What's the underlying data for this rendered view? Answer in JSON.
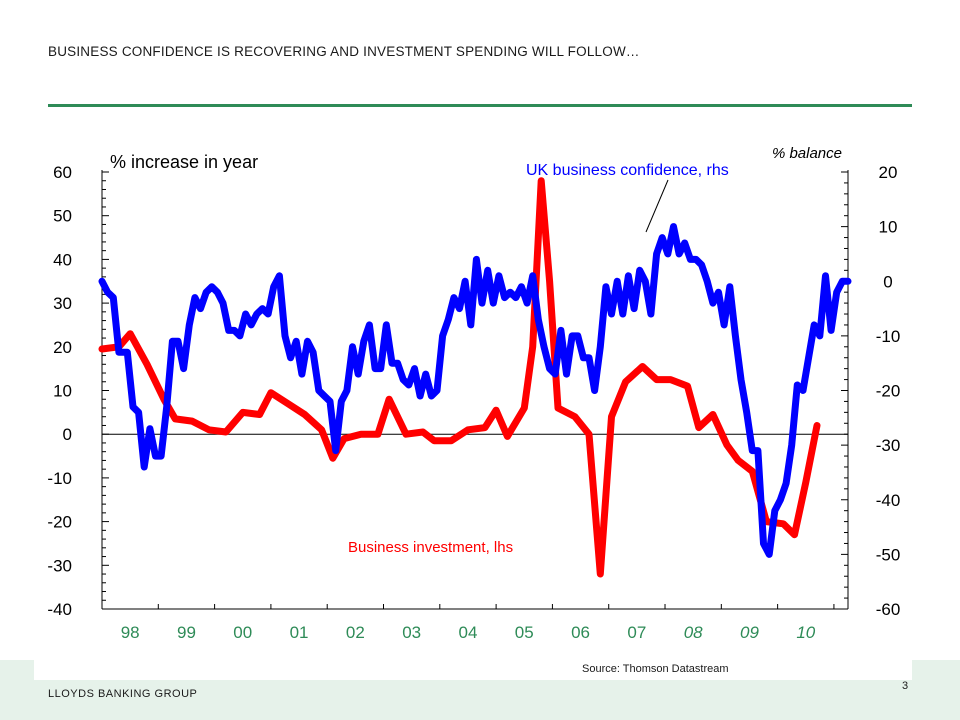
{
  "slide": {
    "title": "BUSINESS CONFIDENCE IS RECOVERING AND INVESTMENT SPENDING WILL FOLLOW…",
    "source": "Source: Thomson Datastream",
    "brand": "LLOYDS BANKING GROUP",
    "page_number": "3",
    "accent_color": "#2e8b57"
  },
  "chart_data": {
    "type": "line",
    "title": "",
    "x_labels": [
      "98",
      "99",
      "00",
      "01",
      "02",
      "03",
      "04",
      "05",
      "06",
      "07",
      "08",
      "09",
      "10"
    ],
    "forecast_labels": [
      "08",
      "09",
      "10"
    ],
    "left_axis": {
      "label": "% increase in year",
      "ylim": [
        -40,
        60
      ],
      "ticks": [
        60,
        50,
        40,
        30,
        20,
        10,
        0,
        -10,
        -20,
        -30,
        -40
      ]
    },
    "right_axis": {
      "label": "% balance",
      "ylim": [
        -60,
        20
      ],
      "ticks": [
        20,
        10,
        0,
        -10,
        -20,
        -30,
        -40,
        -50,
        -60
      ]
    },
    "grid": false,
    "series": [
      {
        "name": "Business investment, lhs",
        "axis": "left",
        "color": "#ff0000",
        "points": [
          [
            1998.0,
            19.5
          ],
          [
            1998.3,
            20
          ],
          [
            1998.5,
            23
          ],
          [
            1998.8,
            16
          ],
          [
            1999.1,
            8
          ],
          [
            1999.3,
            3.5
          ],
          [
            1999.6,
            3
          ],
          [
            1999.9,
            1
          ],
          [
            2000.2,
            0.5
          ],
          [
            2000.5,
            5
          ],
          [
            2000.8,
            4.5
          ],
          [
            2001.0,
            9.5
          ],
          [
            2001.3,
            7
          ],
          [
            2001.6,
            4.5
          ],
          [
            2001.9,
            1
          ],
          [
            2002.1,
            -5.5
          ],
          [
            2002.3,
            -1
          ],
          [
            2002.6,
            0
          ],
          [
            2002.9,
            0
          ],
          [
            2003.1,
            8
          ],
          [
            2003.4,
            0
          ],
          [
            2003.7,
            0.5
          ],
          [
            2003.9,
            -1.5
          ],
          [
            2004.2,
            -1.5
          ],
          [
            2004.5,
            1
          ],
          [
            2004.8,
            1.5
          ],
          [
            2005.0,
            5.5
          ],
          [
            2005.2,
            -0.5
          ],
          [
            2005.5,
            6
          ],
          [
            2005.65,
            20
          ],
          [
            2005.8,
            58
          ],
          [
            2005.95,
            35
          ],
          [
            2006.1,
            6
          ],
          [
            2006.4,
            4
          ],
          [
            2006.65,
            0
          ],
          [
            2006.85,
            -32
          ],
          [
            2007.05,
            4
          ],
          [
            2007.3,
            12
          ],
          [
            2007.6,
            15.5
          ],
          [
            2007.85,
            12.5
          ],
          [
            2008.1,
            12.5
          ],
          [
            2008.4,
            11
          ],
          [
            2008.6,
            1.5
          ],
          [
            2008.85,
            4.5
          ],
          [
            2009.1,
            -2.5
          ],
          [
            2009.3,
            -6
          ],
          [
            2009.55,
            -8.5
          ],
          [
            2009.8,
            -20
          ],
          [
            2010.1,
            -20.5
          ],
          [
            2010.3,
            -23
          ],
          [
            2010.5,
            -11
          ],
          [
            2010.7,
            2
          ]
        ]
      },
      {
        "name": "UK business confidence, rhs",
        "axis": "right",
        "color": "#0000ff",
        "points": [
          [
            1998.0,
            0
          ],
          [
            1998.1,
            -2
          ],
          [
            1998.2,
            -3
          ],
          [
            1998.3,
            -13
          ],
          [
            1998.45,
            -13
          ],
          [
            1998.55,
            -23
          ],
          [
            1998.65,
            -24
          ],
          [
            1998.75,
            -34
          ],
          [
            1998.85,
            -27
          ],
          [
            1998.95,
            -32
          ],
          [
            1999.05,
            -32
          ],
          [
            1999.15,
            -23
          ],
          [
            1999.25,
            -11
          ],
          [
            1999.35,
            -11
          ],
          [
            1999.45,
            -16
          ],
          [
            1999.55,
            -8
          ],
          [
            1999.65,
            -3
          ],
          [
            1999.75,
            -5
          ],
          [
            1999.85,
            -2
          ],
          [
            1999.95,
            -1
          ],
          [
            2000.05,
            -2
          ],
          [
            2000.15,
            -4
          ],
          [
            2000.25,
            -9
          ],
          [
            2000.35,
            -9
          ],
          [
            2000.45,
            -10
          ],
          [
            2000.55,
            -6
          ],
          [
            2000.65,
            -8
          ],
          [
            2000.75,
            -6
          ],
          [
            2000.85,
            -5
          ],
          [
            2000.95,
            -6
          ],
          [
            2001.05,
            -1
          ],
          [
            2001.15,
            1
          ],
          [
            2001.25,
            -10
          ],
          [
            2001.35,
            -14
          ],
          [
            2001.45,
            -11
          ],
          [
            2001.55,
            -17
          ],
          [
            2001.65,
            -11
          ],
          [
            2001.75,
            -13
          ],
          [
            2001.85,
            -20
          ],
          [
            2001.95,
            -21
          ],
          [
            2002.05,
            -22
          ],
          [
            2002.15,
            -31
          ],
          [
            2002.25,
            -22
          ],
          [
            2002.35,
            -20
          ],
          [
            2002.45,
            -12
          ],
          [
            2002.55,
            -17
          ],
          [
            2002.65,
            -11
          ],
          [
            2002.75,
            -8
          ],
          [
            2002.85,
            -16
          ],
          [
            2002.95,
            -16
          ],
          [
            2003.05,
            -8
          ],
          [
            2003.15,
            -15
          ],
          [
            2003.25,
            -15
          ],
          [
            2003.35,
            -18
          ],
          [
            2003.45,
            -19
          ],
          [
            2003.55,
            -16
          ],
          [
            2003.65,
            -21
          ],
          [
            2003.75,
            -17
          ],
          [
            2003.85,
            -21
          ],
          [
            2003.95,
            -20
          ],
          [
            2004.05,
            -10
          ],
          [
            2004.15,
            -7
          ],
          [
            2004.25,
            -3
          ],
          [
            2004.35,
            -5
          ],
          [
            2004.45,
            0
          ],
          [
            2004.55,
            -8
          ],
          [
            2004.65,
            4
          ],
          [
            2004.75,
            -4
          ],
          [
            2004.85,
            2
          ],
          [
            2004.95,
            -4
          ],
          [
            2005.05,
            1
          ],
          [
            2005.15,
            -3
          ],
          [
            2005.25,
            -2
          ],
          [
            2005.35,
            -3
          ],
          [
            2005.45,
            -1
          ],
          [
            2005.55,
            -4
          ],
          [
            2005.65,
            1
          ],
          [
            2005.75,
            -7
          ],
          [
            2005.85,
            -12
          ],
          [
            2005.95,
            -16
          ],
          [
            2006.05,
            -17
          ],
          [
            2006.15,
            -9
          ],
          [
            2006.25,
            -17
          ],
          [
            2006.35,
            -10
          ],
          [
            2006.45,
            -10
          ],
          [
            2006.55,
            -14
          ],
          [
            2006.65,
            -14
          ],
          [
            2006.75,
            -20
          ],
          [
            2006.85,
            -12
          ],
          [
            2006.95,
            -1
          ],
          [
            2007.05,
            -6
          ],
          [
            2007.15,
            0
          ],
          [
            2007.25,
            -6
          ],
          [
            2007.35,
            1
          ],
          [
            2007.45,
            -5
          ],
          [
            2007.55,
            2
          ],
          [
            2007.65,
            0
          ],
          [
            2007.75,
            -6
          ],
          [
            2007.85,
            5
          ],
          [
            2007.95,
            8
          ],
          [
            2008.05,
            5
          ],
          [
            2008.15,
            10
          ],
          [
            2008.25,
            5
          ],
          [
            2008.35,
            7
          ],
          [
            2008.45,
            4
          ],
          [
            2008.55,
            4
          ],
          [
            2008.65,
            3
          ],
          [
            2008.75,
            0
          ],
          [
            2008.85,
            -4
          ],
          [
            2008.95,
            -2
          ],
          [
            2009.05,
            -8
          ],
          [
            2009.15,
            -1
          ],
          [
            2009.25,
            -10
          ],
          [
            2009.35,
            -18
          ],
          [
            2009.45,
            -24
          ],
          [
            2009.55,
            -31
          ],
          [
            2009.65,
            -31
          ],
          [
            2009.75,
            -48
          ],
          [
            2009.85,
            -50
          ],
          [
            2009.95,
            -42
          ],
          [
            2010.05,
            -40
          ],
          [
            2010.15,
            -37
          ],
          [
            2010.25,
            -30
          ],
          [
            2010.35,
            -19
          ],
          [
            2010.45,
            -20
          ],
          [
            2010.55,
            -14
          ],
          [
            2010.65,
            -8
          ],
          [
            2010.75,
            -10
          ],
          [
            2010.85,
            1
          ],
          [
            2010.95,
            -9
          ],
          [
            2011.05,
            -2
          ],
          [
            2011.15,
            0
          ],
          [
            2011.25,
            0
          ]
        ]
      }
    ],
    "annotations": {
      "confidence_label": "UK business confidence, rhs",
      "investment_label": "Business investment, lhs"
    }
  }
}
